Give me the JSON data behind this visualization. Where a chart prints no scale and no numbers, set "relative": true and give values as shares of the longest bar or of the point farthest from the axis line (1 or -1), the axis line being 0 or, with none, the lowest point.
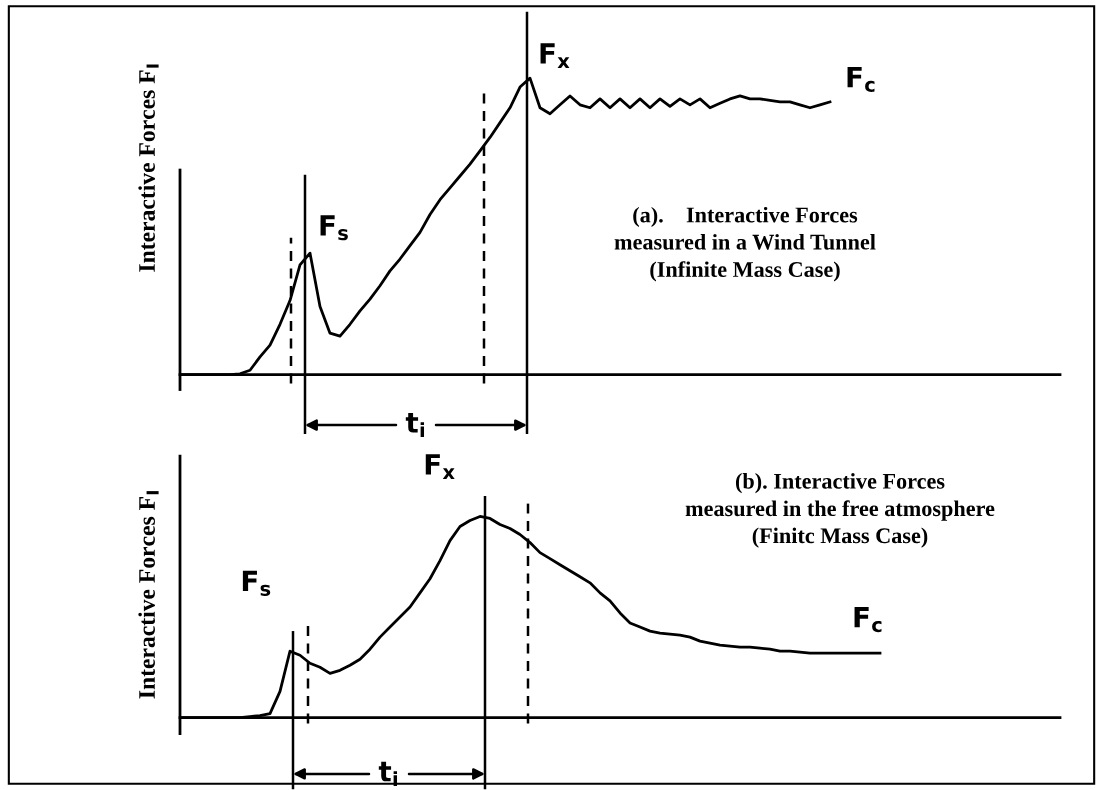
{
  "chart_data": [
    {
      "type": "line",
      "relative": true,
      "ylabel": "Interactive Forces F$_{I}$",
      "categories": [
        null,
        null,
        null,
        null,
        null,
        null,
        null,
        null,
        null,
        null,
        null,
        null,
        null,
        null,
        null,
        null,
        null,
        null,
        null,
        null,
        null,
        null,
        null,
        null,
        null,
        null,
        null,
        null,
        null,
        null,
        null,
        null,
        null,
        null,
        null,
        null,
        null,
        null,
        null,
        null,
        null,
        null,
        null,
        null,
        null,
        null,
        null,
        null,
        null,
        null,
        null,
        null,
        null,
        null,
        null,
        null,
        null,
        null,
        null,
        null,
        null,
        null,
        null,
        null,
        null,
        null,
        null,
        null,
        null,
        null,
        null,
        null,
        null,
        null,
        null,
        null,
        null,
        null,
        null,
        null,
        null,
        null,
        null,
        null,
        null,
        null,
        null,
        null,
        null
      ],
      "series": [
        {
          "color": "#000000",
          "values": [
            0,
            0,
            0,
            0,
            0,
            0,
            0.003,
            0.015,
            0.06,
            0.1,
            0.17,
            0.25,
            0.37,
            0.41,
            0.23,
            0.14,
            0.13,
            0.17,
            0.215,
            0.255,
            0.3,
            0.35,
            0.39,
            0.435,
            0.48,
            0.54,
            0.59,
            0.63,
            0.67,
            0.71,
            0.755,
            0.8,
            0.85,
            0.9,
            0.97,
            1.0,
            0.9,
            0.88,
            0.91,
            0.94,
            0.91,
            0.9,
            0.93,
            0.9,
            0.93,
            0.9,
            0.93,
            0.9,
            0.93,
            0.905,
            0.93,
            0.91,
            0.93,
            0.9,
            0.915,
            0.93,
            0.94,
            0.93,
            0.93,
            0.925,
            0.92,
            0.92,
            0.91,
            0.9,
            0.91,
            0.92,
            null,
            null,
            null,
            null,
            null,
            null,
            null,
            null,
            null,
            null,
            null,
            null,
            null,
            null,
            null,
            null,
            null,
            null,
            null,
            null,
            null,
            null,
            null
          ]
        }
      ],
      "annotations": [
        "F$_{s}$",
        "F$_{x}$",
        "F$_{c}$",
        "t$_{i}$",
        "(a).    Interactive Forces\nmeasured in a Wind Tunnel\n(Infinite Mass Case)"
      ]
    },
    {
      "type": "line",
      "relative": true,
      "ylabel": "Interactive Forces F$_{I}$",
      "categories": [
        null,
        null,
        null,
        null,
        null,
        null,
        null,
        null,
        null,
        null,
        null,
        null,
        null,
        null,
        null,
        null,
        null,
        null,
        null,
        null,
        null,
        null,
        null,
        null,
        null,
        null,
        null,
        null,
        null,
        null,
        null,
        null,
        null,
        null,
        null,
        null,
        null,
        null,
        null,
        null,
        null,
        null,
        null,
        null,
        null,
        null,
        null,
        null,
        null,
        null,
        null,
        null,
        null,
        null,
        null,
        null,
        null,
        null,
        null,
        null,
        null,
        null,
        null,
        null,
        null,
        null,
        null,
        null,
        null,
        null,
        null,
        null,
        null,
        null,
        null,
        null,
        null,
        null,
        null,
        null,
        null,
        null,
        null,
        null,
        null,
        null,
        null,
        null,
        null
      ],
      "series": [
        {
          "color": "#000000",
          "values": [
            0,
            0,
            0,
            0,
            0,
            0,
            0,
            0.005,
            0.01,
            0.02,
            0.13,
            0.33,
            0.31,
            0.27,
            0.25,
            0.22,
            0.235,
            0.26,
            0.29,
            0.34,
            0.4,
            0.45,
            0.5,
            0.55,
            0.62,
            0.69,
            0.78,
            0.88,
            0.95,
            0.98,
            1.0,
            0.99,
            0.96,
            0.94,
            0.91,
            0.87,
            0.82,
            0.79,
            0.76,
            0.73,
            0.7,
            0.67,
            0.62,
            0.58,
            0.52,
            0.47,
            0.45,
            0.43,
            0.42,
            0.415,
            0.41,
            0.4,
            0.38,
            0.37,
            0.36,
            0.355,
            0.35,
            0.35,
            0.345,
            0.34,
            0.33,
            0.33,
            0.325,
            0.32,
            0.32,
            0.32,
            0.32,
            0.32,
            0.32,
            0.32,
            0.32,
            null,
            null,
            null,
            null,
            null,
            null,
            null,
            null,
            null,
            null,
            null,
            null,
            null,
            null,
            null,
            null,
            null,
            null
          ]
        }
      ],
      "annotations": [
        "F$_{s}$",
        "F$_{x}$",
        "F$_{c}$",
        "t$_{i}$",
        "(b). Interactive Forces\nmeasured in the free atmosphere\n(Finitc Mass Case)"
      ]
    }
  ]
}
